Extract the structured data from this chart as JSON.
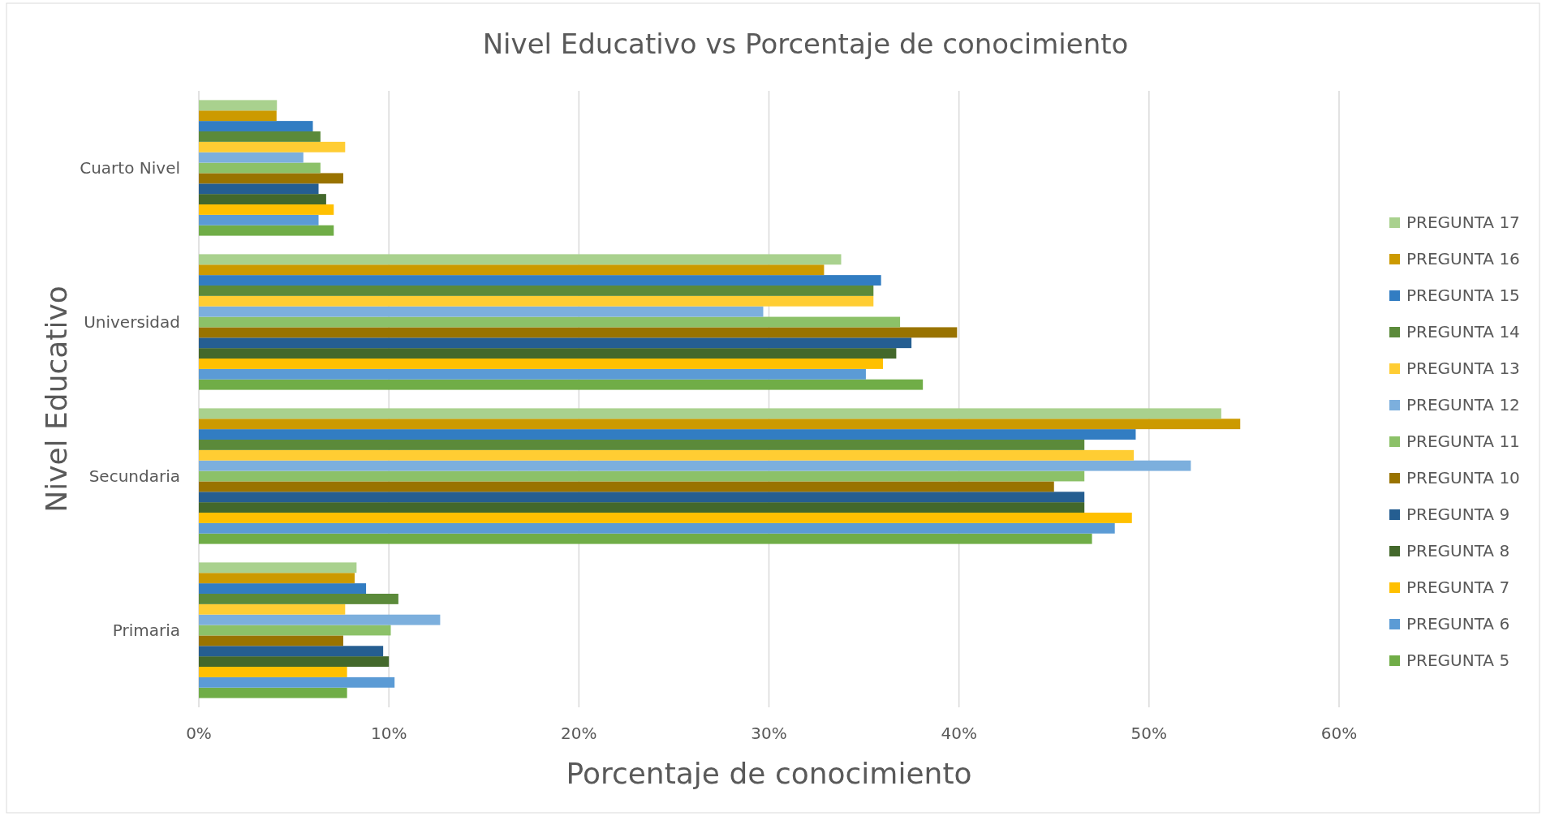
{
  "chart_data": {
    "type": "bar",
    "orientation": "horizontal",
    "title": "Nivel Educativo vs Porcentaje de conocimiento",
    "xlabel": "Porcentaje de conocimiento",
    "ylabel": "Nivel Educativo",
    "categories": [
      "Cuarto Nivel",
      "Universidad",
      "Secundaria",
      "Primaria"
    ],
    "series": [
      {
        "name": "PREGUNTA 5",
        "color": "#70ad47",
        "values": [
          7.1,
          38.1,
          47.0,
          7.8
        ]
      },
      {
        "name": "PREGUNTA 6",
        "color": "#5b9bd5",
        "values": [
          6.3,
          35.1,
          48.2,
          10.3
        ]
      },
      {
        "name": "PREGUNTA 7",
        "color": "#ffc000",
        "values": [
          7.1,
          36.0,
          49.1,
          7.8
        ]
      },
      {
        "name": "PREGUNTA 8",
        "color": "#43682b",
        "values": [
          6.7,
          36.7,
          46.6,
          10.0
        ]
      },
      {
        "name": "PREGUNTA 9",
        "color": "#255e91",
        "values": [
          6.3,
          37.5,
          46.6,
          9.7
        ]
      },
      {
        "name": "PREGUNTA 10",
        "color": "#997300",
        "values": [
          7.6,
          39.9,
          45.0,
          7.6
        ]
      },
      {
        "name": "PREGUNTA 11",
        "color": "#8cc168",
        "values": [
          6.4,
          36.9,
          46.6,
          10.1
        ]
      },
      {
        "name": "PREGUNTA 12",
        "color": "#7cafdd",
        "values": [
          5.5,
          29.7,
          52.2,
          12.7
        ]
      },
      {
        "name": "PREGUNTA 13",
        "color": "#ffcd33",
        "values": [
          7.7,
          35.5,
          49.2,
          7.7
        ]
      },
      {
        "name": "PREGUNTA 14",
        "color": "#5b8a3a",
        "values": [
          6.4,
          35.5,
          46.6,
          10.5
        ]
      },
      {
        "name": "PREGUNTA 15",
        "color": "#327dc2",
        "values": [
          6.0,
          35.9,
          49.3,
          8.8
        ]
      },
      {
        "name": "PREGUNTA 16",
        "color": "#cc9a00",
        "values": [
          4.09,
          32.9,
          54.8,
          8.2
        ]
      },
      {
        "name": "PREGUNTA 17",
        "color": "#a9d18e",
        "values": [
          4.11,
          33.8,
          53.8,
          8.3
        ]
      }
    ],
    "xlim": [
      0,
      60
    ],
    "xticks": [
      {
        "value": 0,
        "label": "0%"
      },
      {
        "value": 10,
        "label": "10%"
      },
      {
        "value": 20,
        "label": "20%"
      },
      {
        "value": 30,
        "label": "30%"
      },
      {
        "value": 40,
        "label": "40%"
      },
      {
        "value": 50,
        "label": "50%"
      },
      {
        "value": 60,
        "label": "60%"
      }
    ],
    "grid": "x",
    "legend": "right"
  }
}
